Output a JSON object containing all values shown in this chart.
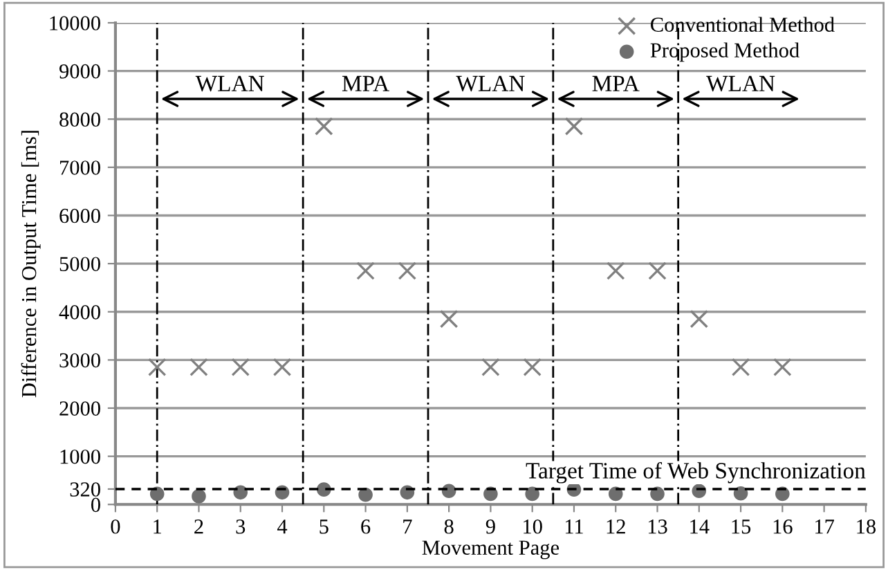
{
  "chart_data": {
    "type": "scatter",
    "xlabel": "Movement Page",
    "ylabel": "Difference in Output Time [ms]",
    "x": [
      1,
      2,
      3,
      4,
      5,
      6,
      7,
      8,
      9,
      10,
      11,
      12,
      13,
      14,
      15,
      16
    ],
    "series": [
      {
        "name": "Conventional Method",
        "color": "#808080",
        "marker": "cross",
        "values": [
          2850,
          2850,
          2850,
          2850,
          7850,
          4850,
          4850,
          3850,
          2850,
          2850,
          7850,
          4850,
          4850,
          3850,
          2850,
          2850
        ]
      },
      {
        "name": "Proposed Method",
        "color": "#6e6e6e",
        "marker": "circle",
        "values": [
          220,
          170,
          250,
          250,
          310,
          200,
          250,
          280,
          220,
          220,
          310,
          220,
          220,
          280,
          230,
          220
        ]
      }
    ],
    "xlim": [
      0,
      18
    ],
    "xticks": [
      0,
      1,
      2,
      3,
      4,
      5,
      6,
      7,
      8,
      9,
      10,
      11,
      12,
      13,
      14,
      15,
      16,
      17,
      18
    ],
    "ylim": [
      0,
      10000
    ],
    "yticks": [
      0,
      320,
      1000,
      2000,
      3000,
      4000,
      5000,
      6000,
      7000,
      8000,
      9000,
      10000
    ],
    "grid": "y",
    "legend": "top right",
    "ref_lines": [
      {
        "axis": "y",
        "value": 320,
        "label": "Target Time of Web Synchronization",
        "color": "#000000",
        "line_style": "dashed"
      },
      {
        "axis": "x",
        "value": 1,
        "label": null,
        "color": "#000000",
        "line_style": "dotted"
      },
      {
        "axis": "x",
        "value": 4.5,
        "label": null,
        "color": "#000000",
        "line_style": "dotted"
      },
      {
        "axis": "x",
        "value": 7.5,
        "label": null,
        "color": "#000000",
        "line_style": "dotted"
      },
      {
        "axis": "x",
        "value": 10.5,
        "label": null,
        "color": "#000000",
        "line_style": "dotted"
      },
      {
        "axis": "x",
        "value": 13.5,
        "label": null,
        "color": "#000000",
        "line_style": "dotted"
      }
    ],
    "annotations": [
      "WLAN",
      "MPA",
      "WLAN",
      "MPA",
      "WLAN"
    ]
  }
}
